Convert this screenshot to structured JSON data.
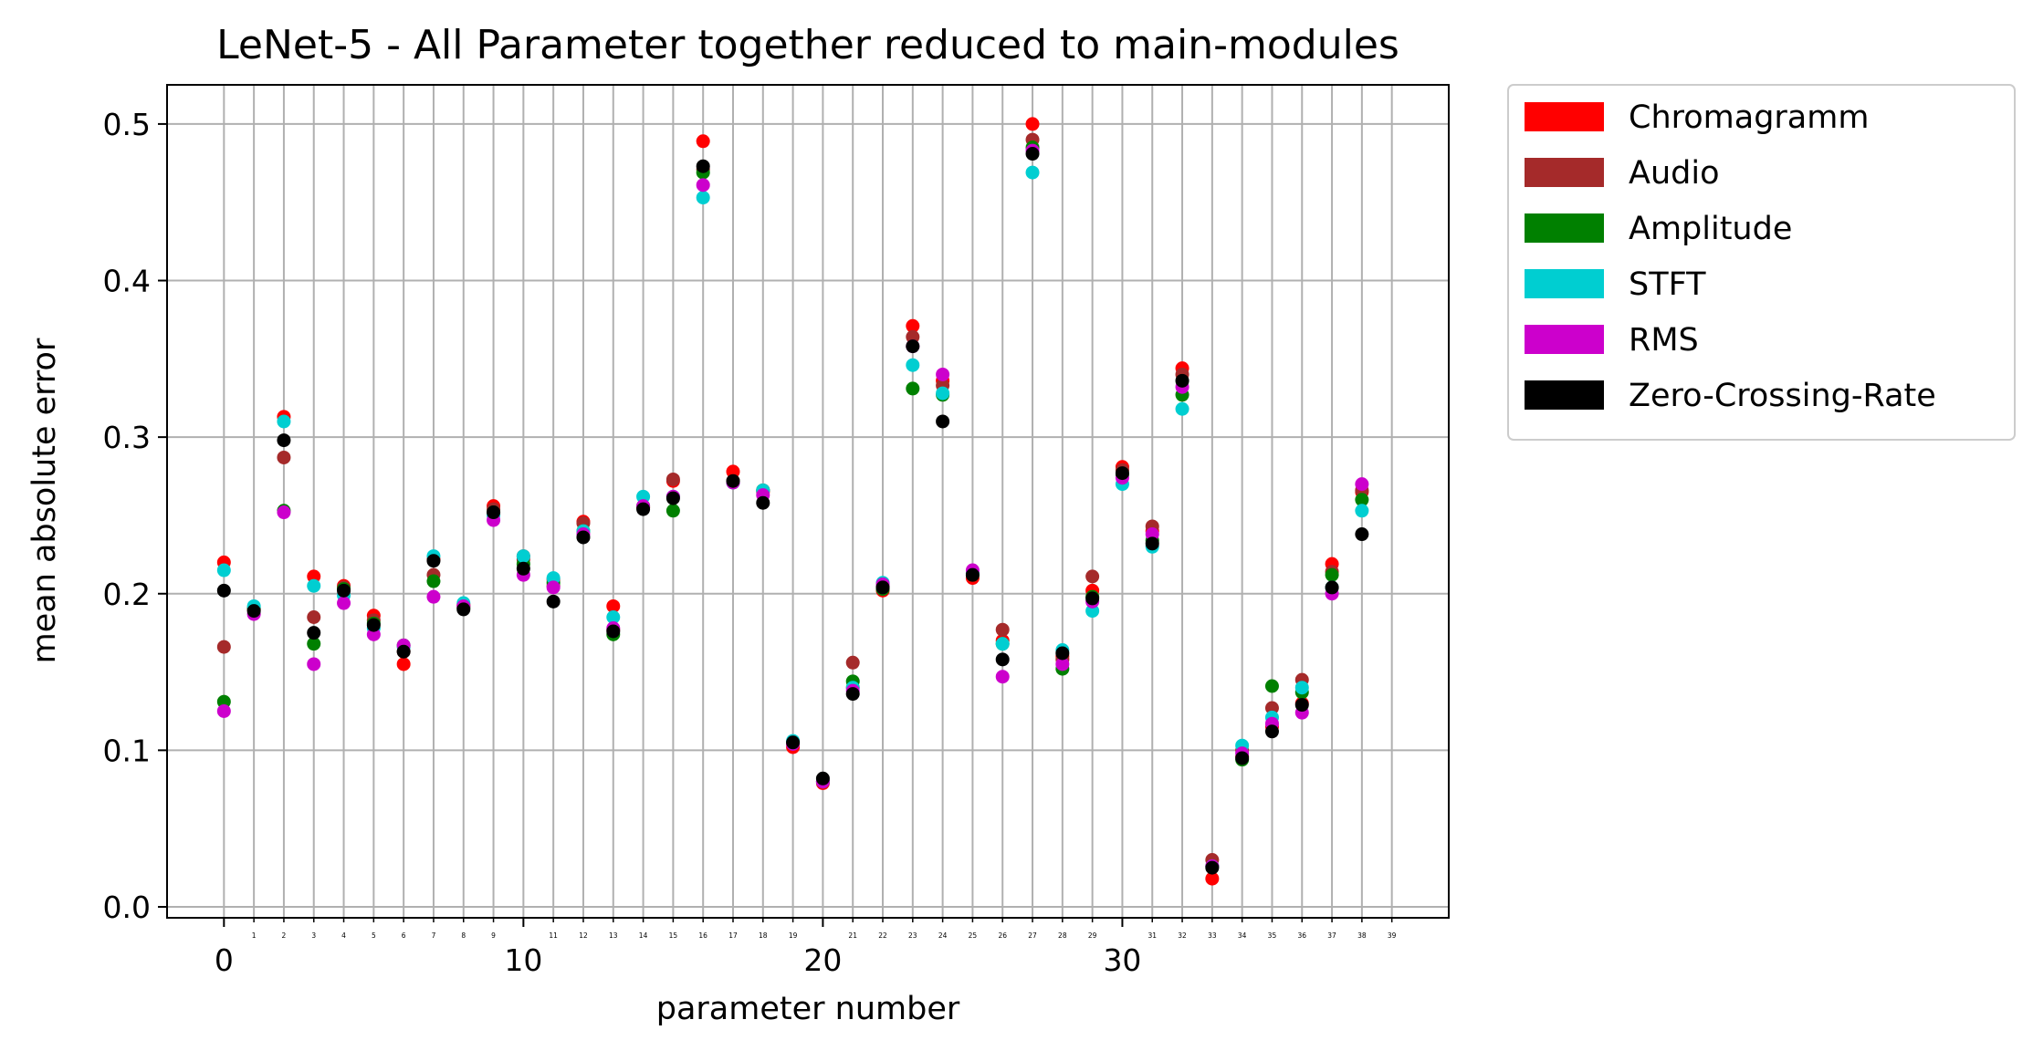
{
  "chart_data": {
    "type": "scatter",
    "title": "LeNet-5 - All Parameter together reduced to main-modules",
    "xlabel": "parameter number",
    "ylabel": "mean absolute error",
    "xlim": [
      -1.9,
      40.9
    ],
    "ylim": [
      -0.007,
      0.525
    ],
    "grid": true,
    "legend_position": "outside-right",
    "y_ticks": [
      "0.0",
      "0.1",
      "0.2",
      "0.3",
      "0.4",
      "0.5"
    ],
    "x_major_ticks": [
      "0",
      "10",
      "20",
      "30"
    ],
    "x_minor_ticks": [
      "1",
      "2",
      "3",
      "4",
      "5",
      "6",
      "7",
      "8",
      "9",
      "11",
      "12",
      "13",
      "14",
      "15",
      "16",
      "17",
      "18",
      "19",
      "21",
      "22",
      "23",
      "24",
      "25",
      "26",
      "27",
      "28",
      "29",
      "31",
      "32",
      "33",
      "34",
      "35",
      "36",
      "37",
      "38",
      "39"
    ],
    "x": [
      0,
      1,
      2,
      3,
      4,
      5,
      6,
      7,
      8,
      9,
      10,
      11,
      12,
      13,
      14,
      15,
      16,
      17,
      18,
      19,
      20,
      21,
      22,
      23,
      24,
      25,
      26,
      27,
      28,
      29,
      30,
      31,
      32,
      33,
      34,
      35,
      36,
      37,
      38
    ],
    "series": [
      {
        "name": "Chromagramm",
        "color": "#ff0000",
        "values": [
          0.22,
          0.19,
          0.313,
          0.211,
          0.205,
          0.186,
          0.155,
          0.222,
          0.193,
          0.256,
          0.224,
          0.209,
          0.246,
          0.192,
          0.255,
          0.272,
          0.489,
          0.278,
          0.265,
          0.102,
          0.079,
          0.14,
          0.202,
          0.371,
          0.336,
          0.21,
          0.17,
          0.5,
          0.16,
          0.202,
          0.281,
          0.24,
          0.344,
          0.018,
          0.096,
          0.115,
          0.13,
          0.219,
          0.265
        ]
      },
      {
        "name": "Audio",
        "color": "#a52a2a",
        "values": [
          0.166,
          0.19,
          0.287,
          0.185,
          0.204,
          0.183,
          0.163,
          0.212,
          0.192,
          0.254,
          0.222,
          0.205,
          0.245,
          0.177,
          0.255,
          0.273,
          0.471,
          0.272,
          0.266,
          0.104,
          0.08,
          0.156,
          0.205,
          0.364,
          0.333,
          0.213,
          0.177,
          0.49,
          0.158,
          0.211,
          0.279,
          0.243,
          0.34,
          0.03,
          0.1,
          0.127,
          0.145,
          0.214,
          0.266
        ]
      },
      {
        "name": "Amplitude",
        "color": "#008000",
        "values": [
          0.131,
          0.191,
          0.253,
          0.168,
          0.203,
          0.181,
          0.167,
          0.208,
          0.191,
          0.252,
          0.219,
          0.207,
          0.24,
          0.174,
          0.256,
          0.253,
          0.469,
          0.271,
          0.266,
          0.105,
          0.08,
          0.144,
          0.203,
          0.331,
          0.327,
          0.212,
          0.168,
          0.485,
          0.152,
          0.198,
          0.276,
          0.234,
          0.327,
          0.026,
          0.094,
          0.141,
          0.137,
          0.212,
          0.26
        ]
      },
      {
        "name": "STFT",
        "color": "#00ced1",
        "values": [
          0.215,
          0.192,
          0.31,
          0.205,
          0.199,
          0.178,
          0.166,
          0.224,
          0.194,
          0.25,
          0.224,
          0.21,
          0.24,
          0.185,
          0.262,
          0.262,
          0.453,
          0.271,
          0.266,
          0.106,
          0.08,
          0.14,
          0.207,
          0.346,
          0.328,
          0.213,
          0.168,
          0.469,
          0.164,
          0.189,
          0.27,
          0.23,
          0.318,
          0.026,
          0.103,
          0.121,
          0.14,
          0.204,
          0.253
        ]
      },
      {
        "name": "RMS",
        "color": "#cc00cc",
        "values": [
          0.125,
          0.187,
          0.252,
          0.155,
          0.194,
          0.174,
          0.167,
          0.198,
          0.192,
          0.247,
          0.212,
          0.204,
          0.238,
          0.178,
          0.256,
          0.262,
          0.461,
          0.271,
          0.263,
          0.104,
          0.08,
          0.138,
          0.206,
          0.358,
          0.34,
          0.215,
          0.147,
          0.483,
          0.155,
          0.195,
          0.274,
          0.238,
          0.332,
          0.026,
          0.098,
          0.117,
          0.124,
          0.2,
          0.27
        ]
      },
      {
        "name": "Zero-Crossing-Rate",
        "color": "#000000",
        "values": [
          0.202,
          0.189,
          0.298,
          0.175,
          0.202,
          0.18,
          0.163,
          0.221,
          0.19,
          0.252,
          0.216,
          0.195,
          0.236,
          0.176,
          0.254,
          0.261,
          0.473,
          0.272,
          0.258,
          0.105,
          0.082,
          0.136,
          0.204,
          0.358,
          0.31,
          0.212,
          0.158,
          0.481,
          0.162,
          0.197,
          0.277,
          0.232,
          0.336,
          0.025,
          0.095,
          0.112,
          0.129,
          0.204,
          0.238
        ]
      }
    ]
  }
}
